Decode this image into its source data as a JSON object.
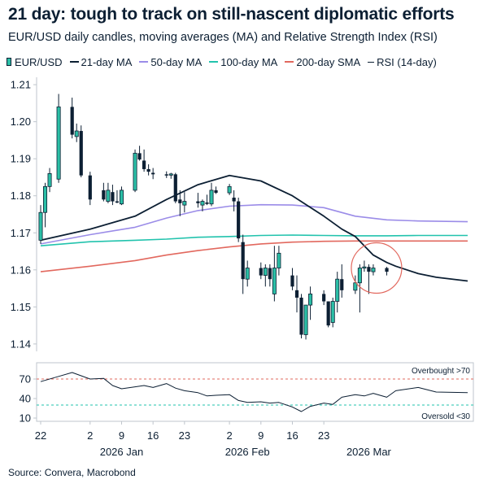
{
  "title": "21 day: tough to track on still-nascent diplomatic efforts",
  "subtitle": "EUR/USD daily candles, moving averages (MA) and Relative Strength Index (RSI)",
  "source": "Source: Convera, Macrobond",
  "colors": {
    "candle_up": "#2bbfa6",
    "candle_down": "#0c1f33",
    "ma21": "#0c1f33",
    "ma50": "#9b8ce8",
    "ma100": "#22c3ad",
    "sma200": "#e2685e",
    "rsi": "#0c1f33",
    "overbought": "#e2685e",
    "oversold": "#22c3ad",
    "highlight": "#e2685e"
  },
  "legend": [
    {
      "label": "EUR/USD",
      "kind": "candle",
      "color_key": "candle_up"
    },
    {
      "label": "21-day MA",
      "kind": "line",
      "color_key": "ma21"
    },
    {
      "label": "50-day MA",
      "kind": "line",
      "color_key": "ma50"
    },
    {
      "label": "100-day MA",
      "kind": "line",
      "color_key": "ma100"
    },
    {
      "label": "200-day SMA",
      "kind": "line",
      "color_key": "sma200"
    },
    {
      "label": "RSI (14-day)",
      "kind": "line",
      "color_key": "rsi"
    }
  ],
  "chart_data": [
    {
      "type": "candlestick",
      "ylim": [
        1.138,
        1.212
      ],
      "yticks": [
        1.14,
        1.15,
        1.16,
        1.17,
        1.18,
        1.19,
        1.2,
        1.21
      ],
      "ytick_labels": [
        "1.14",
        "1.15",
        "1.16",
        "1.17",
        "1.18",
        "1.19",
        "1.20",
        "1.21"
      ],
      "x_start": "2025-12-22",
      "x_end": "2026-03-27",
      "candles": [
        {
          "date": "2025-12-22",
          "o": 1.168,
          "h": 1.1775,
          "l": 1.167,
          "c": 1.1755
        },
        {
          "date": "2025-12-23",
          "o": 1.1755,
          "h": 1.1835,
          "l": 1.1715,
          "c": 1.1825
        },
        {
          "date": "2025-12-24",
          "o": 1.1825,
          "h": 1.1875,
          "l": 1.181,
          "c": 1.186
        },
        {
          "date": "2025-12-26",
          "o": 1.1845,
          "h": 1.2075,
          "l": 1.1835,
          "c": 1.204
        },
        {
          "date": "2025-12-29",
          "o": 1.204,
          "h": 1.2065,
          "l": 1.1955,
          "c": 1.1965
        },
        {
          "date": "2025-12-30",
          "o": 1.196,
          "h": 1.1995,
          "l": 1.1945,
          "c": 1.1975
        },
        {
          "date": "2025-12-31",
          "o": 1.1975,
          "h": 1.199,
          "l": 1.185,
          "c": 1.1855
        },
        {
          "date": "2026-01-02",
          "o": 1.1855,
          "h": 1.1865,
          "l": 1.1775,
          "c": 1.179
        },
        {
          "date": "2026-01-05",
          "o": 1.1815,
          "h": 1.1835,
          "l": 1.1785,
          "c": 1.179
        },
        {
          "date": "2026-01-06",
          "o": 1.1785,
          "h": 1.1835,
          "l": 1.178,
          "c": 1.1815
        },
        {
          "date": "2026-01-07",
          "o": 1.181,
          "h": 1.183,
          "l": 1.1775,
          "c": 1.1785
        },
        {
          "date": "2026-01-08",
          "o": 1.1785,
          "h": 1.1815,
          "l": 1.178,
          "c": 1.1782
        },
        {
          "date": "2026-01-09",
          "o": 1.1778,
          "h": 1.1825,
          "l": 1.1775,
          "c": 1.1815
        },
        {
          "date": "2026-01-12",
          "o": 1.1815,
          "h": 1.1925,
          "l": 1.181,
          "c": 1.1915
        },
        {
          "date": "2026-01-13",
          "o": 1.1915,
          "h": 1.1935,
          "l": 1.1895,
          "c": 1.1898
        },
        {
          "date": "2026-01-14",
          "o": 1.1895,
          "h": 1.1925,
          "l": 1.1865,
          "c": 1.1872
        },
        {
          "date": "2026-01-15",
          "o": 1.1872,
          "h": 1.1885,
          "l": 1.1855,
          "c": 1.1865
        },
        {
          "date": "2026-01-16",
          "o": 1.1862,
          "h": 1.1875,
          "l": 1.1845,
          "c": 1.1858
        },
        {
          "date": "2026-01-19",
          "o": 1.1858,
          "h": 1.1866,
          "l": 1.1848,
          "c": 1.1855
        },
        {
          "date": "2026-01-20",
          "o": 1.1856,
          "h": 1.1862,
          "l": 1.1846,
          "c": 1.1859
        },
        {
          "date": "2026-01-21",
          "o": 1.1858,
          "h": 1.1862,
          "l": 1.178,
          "c": 1.1785
        },
        {
          "date": "2026-01-22",
          "o": 1.179,
          "h": 1.1815,
          "l": 1.1745,
          "c": 1.178
        },
        {
          "date": "2026-01-23",
          "o": 1.1775,
          "h": 1.181,
          "l": 1.1755,
          "c": 1.1785
        },
        {
          "date": "2026-01-26",
          "o": 1.1785,
          "h": 1.1808,
          "l": 1.1768,
          "c": 1.178
        },
        {
          "date": "2026-01-27",
          "o": 1.1775,
          "h": 1.179,
          "l": 1.1758,
          "c": 1.1785
        },
        {
          "date": "2026-01-28",
          "o": 1.1782,
          "h": 1.1803,
          "l": 1.1775,
          "c": 1.1778
        },
        {
          "date": "2026-01-29",
          "o": 1.1778,
          "h": 1.1835,
          "l": 1.1772,
          "c": 1.1815
        },
        {
          "date": "2026-01-30",
          "o": 1.1815,
          "h": 1.1825,
          "l": 1.1805,
          "c": 1.1808
        },
        {
          "date": "2026-02-02",
          "o": 1.1808,
          "h": 1.1832,
          "l": 1.1802,
          "c": 1.1825
        },
        {
          "date": "2026-02-03",
          "o": 1.1795,
          "h": 1.1815,
          "l": 1.1758,
          "c": 1.1785
        },
        {
          "date": "2026-02-04",
          "o": 1.1785,
          "h": 1.1795,
          "l": 1.1675,
          "c": 1.1685
        },
        {
          "date": "2026-02-05",
          "o": 1.1675,
          "h": 1.1695,
          "l": 1.1535,
          "c": 1.1575
        },
        {
          "date": "2026-02-06",
          "o": 1.1575,
          "h": 1.1625,
          "l": 1.1555,
          "c": 1.1605
        },
        {
          "date": "2026-02-09",
          "o": 1.1605,
          "h": 1.162,
          "l": 1.1575,
          "c": 1.1585
        },
        {
          "date": "2026-02-10",
          "o": 1.1585,
          "h": 1.1615,
          "l": 1.1555,
          "c": 1.1605
        },
        {
          "date": "2026-02-11",
          "o": 1.1605,
          "h": 1.1615,
          "l": 1.1555,
          "c": 1.1575
        },
        {
          "date": "2026-02-12",
          "o": 1.1535,
          "h": 1.1665,
          "l": 1.1515,
          "c": 1.1605
        },
        {
          "date": "2026-02-13",
          "o": 1.1605,
          "h": 1.1665,
          "l": 1.1585,
          "c": 1.1645
        },
        {
          "date": "2026-02-16",
          "o": 1.1585,
          "h": 1.1605,
          "l": 1.1545,
          "c": 1.1555
        },
        {
          "date": "2026-02-17",
          "o": 1.1545,
          "h": 1.1585,
          "l": 1.1485,
          "c": 1.1525
        },
        {
          "date": "2026-02-18",
          "o": 1.1525,
          "h": 1.1535,
          "l": 1.1415,
          "c": 1.1425
        },
        {
          "date": "2026-02-19",
          "o": 1.1425,
          "h": 1.1505,
          "l": 1.1412,
          "c": 1.1505
        },
        {
          "date": "2026-02-20",
          "o": 1.1505,
          "h": 1.1555,
          "l": 1.1465,
          "c": 1.1535
        },
        {
          "date": "2026-02-23",
          "o": 1.1535,
          "h": 1.1545,
          "l": 1.1505,
          "c": 1.1515
        },
        {
          "date": "2026-02-24",
          "o": 1.1515,
          "h": 1.1515,
          "l": 1.1445,
          "c": 1.145
        },
        {
          "date": "2026-02-25",
          "o": 1.1458,
          "h": 1.1525,
          "l": 1.1445,
          "c": 1.1515
        },
        {
          "date": "2026-02-26",
          "o": 1.1515,
          "h": 1.1595,
          "l": 1.1485,
          "c": 1.1575
        },
        {
          "date": "2026-02-27",
          "o": 1.1575,
          "h": 1.1615,
          "l": 1.1525,
          "c": 1.1545
        },
        {
          "date": "2026-03-02",
          "o": 1.1545,
          "h": 1.1585,
          "l": 1.1535,
          "c": 1.1565
        },
        {
          "date": "2026-03-03",
          "o": 1.1565,
          "h": 1.1615,
          "l": 1.1485,
          "c": 1.1605
        },
        {
          "date": "2026-03-04",
          "o": 1.1605,
          "h": 1.1625,
          "l": 1.1595,
          "c": 1.1608
        },
        {
          "date": "2026-03-05",
          "o": 1.1608,
          "h": 1.1615,
          "l": 1.1535,
          "c": 1.1595
        },
        {
          "date": "2026-03-06",
          "o": 1.1595,
          "h": 1.1615,
          "l": 1.1585,
          "c": 1.1605
        },
        {
          "date": "2026-03-09",
          "o": 1.1605,
          "h": 1.1608,
          "l": 1.1585,
          "c": 1.1595
        }
      ],
      "lines": [
        {
          "name": "21-day MA",
          "color_key": "ma21",
          "points": [
            [
              "2025-12-22",
              1.168
            ],
            [
              "2026-01-02",
              1.171
            ],
            [
              "2026-01-12",
              1.1745
            ],
            [
              "2026-01-19",
              1.179
            ],
            [
              "2026-01-26",
              1.183
            ],
            [
              "2026-02-02",
              1.1855
            ],
            [
              "2026-02-09",
              1.184
            ],
            [
              "2026-02-16",
              1.18
            ],
            [
              "2026-02-23",
              1.1745
            ],
            [
              "2026-02-27",
              1.171
            ],
            [
              "2026-03-02",
              1.169
            ],
            [
              "2026-03-04",
              1.1665
            ],
            [
              "2026-03-06",
              1.164
            ],
            [
              "2026-03-09",
              1.162
            ],
            [
              "2026-03-11",
              1.161
            ],
            [
              "2026-03-16",
              1.159
            ],
            [
              "2026-03-20",
              1.158
            ],
            [
              "2026-03-27",
              1.157
            ]
          ]
        },
        {
          "name": "50-day MA",
          "color_key": "ma50",
          "points": [
            [
              "2025-12-22",
              1.167
            ],
            [
              "2026-01-02",
              1.1695
            ],
            [
              "2026-01-12",
              1.1715
            ],
            [
              "2026-01-19",
              1.174
            ],
            [
              "2026-01-26",
              1.176
            ],
            [
              "2026-02-02",
              1.1772
            ],
            [
              "2026-02-09",
              1.1776
            ],
            [
              "2026-02-16",
              1.1775
            ],
            [
              "2026-02-23",
              1.1768
            ],
            [
              "2026-03-02",
              1.1745
            ],
            [
              "2026-03-09",
              1.1735
            ],
            [
              "2026-03-16",
              1.1732
            ],
            [
              "2026-03-27",
              1.173
            ]
          ]
        },
        {
          "name": "100-day MA",
          "color_key": "ma100",
          "points": [
            [
              "2025-12-22",
              1.1665
            ],
            [
              "2026-01-02",
              1.1676
            ],
            [
              "2026-01-12",
              1.168
            ],
            [
              "2026-01-19",
              1.1683
            ],
            [
              "2026-01-26",
              1.1688
            ],
            [
              "2026-02-02",
              1.169
            ],
            [
              "2026-02-09",
              1.1693
            ],
            [
              "2026-02-16",
              1.1694
            ],
            [
              "2026-02-23",
              1.1693
            ],
            [
              "2026-03-02",
              1.1692
            ],
            [
              "2026-03-09",
              1.1692
            ],
            [
              "2026-03-16",
              1.1693
            ],
            [
              "2026-03-27",
              1.1693
            ]
          ]
        },
        {
          "name": "200-day SMA",
          "color_key": "sma200",
          "points": [
            [
              "2025-12-22",
              1.1595
            ],
            [
              "2026-01-02",
              1.161
            ],
            [
              "2026-01-12",
              1.1625
            ],
            [
              "2026-01-19",
              1.164
            ],
            [
              "2026-01-26",
              1.1652
            ],
            [
              "2026-02-02",
              1.1662
            ],
            [
              "2026-02-09",
              1.167
            ],
            [
              "2026-02-16",
              1.1675
            ],
            [
              "2026-02-23",
              1.1677
            ],
            [
              "2026-03-02",
              1.1678
            ],
            [
              "2026-03-09",
              1.1678
            ],
            [
              "2026-03-16",
              1.1678
            ],
            [
              "2026-03-27",
              1.1678
            ]
          ]
        }
      ],
      "highlight": {
        "date": "2026-03-06",
        "value": 1.1605
      }
    },
    {
      "type": "line",
      "name": "RSI (14-day)",
      "ylim": [
        5,
        95
      ],
      "yticks": [
        10,
        40,
        70
      ],
      "ytick_labels": [
        "10",
        "40",
        "70"
      ],
      "overbought": {
        "value": 70,
        "label": "Overbought >70"
      },
      "oversold": {
        "value": 30,
        "label": "Oversold <30"
      },
      "points": [
        [
          "2025-12-22",
          66
        ],
        [
          "2025-12-26",
          74
        ],
        [
          "2025-12-29",
          80
        ],
        [
          "2026-01-02",
          70
        ],
        [
          "2026-01-05",
          71
        ],
        [
          "2026-01-07",
          60
        ],
        [
          "2026-01-09",
          55
        ],
        [
          "2026-01-12",
          58
        ],
        [
          "2026-01-14",
          60
        ],
        [
          "2026-01-16",
          57
        ],
        [
          "2026-01-19",
          63
        ],
        [
          "2026-01-21",
          56
        ],
        [
          "2026-01-23",
          52
        ],
        [
          "2026-01-26",
          49
        ],
        [
          "2026-01-28",
          44
        ],
        [
          "2026-01-30",
          45
        ],
        [
          "2026-02-02",
          46
        ],
        [
          "2026-02-04",
          37
        ],
        [
          "2026-02-06",
          34
        ],
        [
          "2026-02-09",
          35
        ],
        [
          "2026-02-11",
          33
        ],
        [
          "2026-02-13",
          34
        ],
        [
          "2026-02-16",
          27
        ],
        [
          "2026-02-18",
          20
        ],
        [
          "2026-02-20",
          28
        ],
        [
          "2026-02-23",
          33
        ],
        [
          "2026-02-25",
          31
        ],
        [
          "2026-02-27",
          42
        ],
        [
          "2026-03-02",
          46
        ],
        [
          "2026-03-04",
          44
        ],
        [
          "2026-03-06",
          48
        ],
        [
          "2026-03-09",
          42
        ],
        [
          "2026-03-11",
          52
        ],
        [
          "2026-03-16",
          57
        ],
        [
          "2026-03-20",
          50
        ],
        [
          "2026-03-27",
          49
        ]
      ]
    }
  ],
  "x_axis": {
    "ticks": [
      {
        "date": "2025-12-22",
        "label": "22"
      },
      {
        "date": "2026-01-02",
        "label": "2"
      },
      {
        "date": "2026-01-09",
        "label": "9"
      },
      {
        "date": "2026-01-16",
        "label": "16"
      },
      {
        "date": "2026-01-23",
        "label": "23"
      },
      {
        "date": "2026-02-02",
        "label": "2"
      },
      {
        "date": "2026-02-09",
        "label": "9"
      },
      {
        "date": "2026-02-16",
        "label": "16"
      },
      {
        "date": "2026-02-23",
        "label": "23"
      }
    ],
    "months": [
      {
        "date": "2026-01-09",
        "label": "2026 Jan"
      },
      {
        "date": "2026-02-06",
        "label": "2026 Feb"
      },
      {
        "date": "2026-03-05",
        "label": "2026 Mar"
      }
    ]
  }
}
